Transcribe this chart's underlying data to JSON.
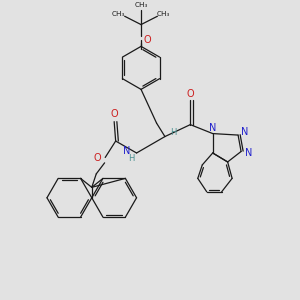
{
  "bg_color": "#e2e2e2",
  "bond_color": "#1a1a1a",
  "N_color": "#2020cc",
  "O_color": "#cc2020",
  "H_color": "#4a9090",
  "figsize": [
    3.0,
    3.0
  ],
  "dpi": 100,
  "xlim": [
    0,
    10
  ],
  "ylim": [
    0,
    10
  ]
}
